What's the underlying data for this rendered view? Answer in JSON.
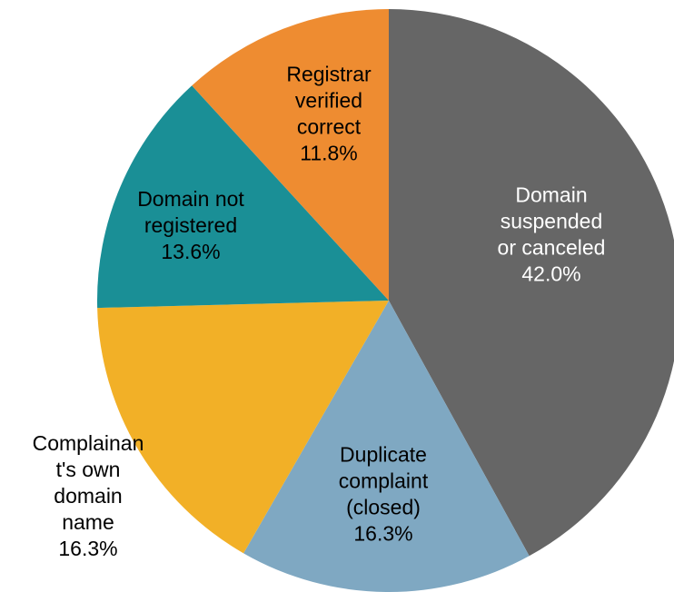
{
  "chart_data": {
    "type": "pie",
    "categories": [
      [
        "Domain",
        "suspended",
        "or canceled"
      ],
      [
        "Duplicate",
        "complaint",
        "(closed)"
      ],
      [
        "Complainan",
        "t's own",
        "domain",
        "name"
      ],
      [
        "Domain not",
        "registered"
      ],
      [
        "Registrar",
        "verified",
        "correct"
      ]
    ],
    "values": [
      42.0,
      16.3,
      16.3,
      13.6,
      11.8
    ],
    "value_labels": [
      "42.0%",
      "16.3%",
      "16.3%",
      "13.6%",
      "11.8%"
    ],
    "colors": [
      "#666666",
      "#7fa8c2",
      "#f2b027",
      "#1a8f96",
      "#ee8c31"
    ]
  }
}
